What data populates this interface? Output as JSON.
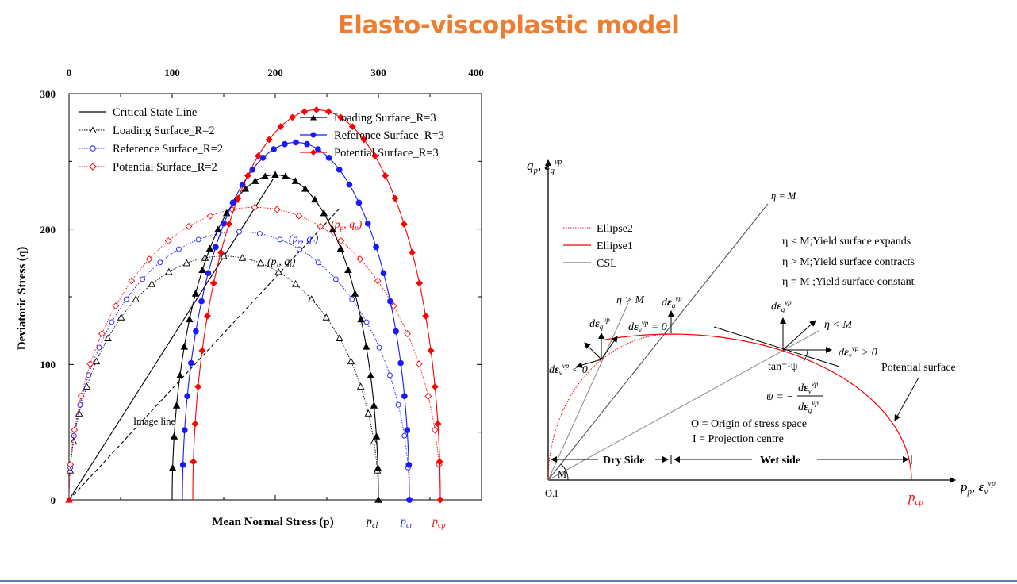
{
  "title": "Elasto-viscoplastic model",
  "chart_data": [
    {
      "type": "line",
      "xlabel": "Mean Normal Stress (p)",
      "ylabel": "Deviatoric Stress (q)",
      "xlim": [
        0,
        400
      ],
      "ylim": [
        0,
        300
      ],
      "x_ticks": [
        "0",
        "100",
        "200",
        "300",
        "400"
      ],
      "y_ticks": [
        "0",
        "100",
        "200",
        "300"
      ],
      "x_ticks_position": "top",
      "legend_left": [
        "Critical State Line",
        "Loading Surface_R=2",
        "Reference Surface_R=2",
        "Potential Surface_R=2"
      ],
      "legend_right": [
        "Loading Surface_R=3",
        "Reference Surface_R=3",
        "Potential Surface_R=3"
      ],
      "series": [
        {
          "name": "Critical State Line",
          "kind": "line",
          "color": "#000000",
          "x": [
            0,
            198
          ],
          "y": [
            0,
            237
          ]
        },
        {
          "name": "Image line",
          "kind": "dashed",
          "color": "#000000",
          "x": [
            0,
            262
          ],
          "y": [
            0,
            215
          ]
        },
        {
          "name": "Loading Surface_R=2",
          "kind": "ellipse",
          "color": "#000000",
          "marker": "triangle-open",
          "p0": 300,
          "R": 2,
          "M": 1.2
        },
        {
          "name": "Reference Surface_R=2",
          "kind": "ellipse",
          "color": "#1A1AFF",
          "marker": "circle-open",
          "p0": 330,
          "R": 2,
          "M": 1.2
        },
        {
          "name": "Potential Surface_R=2",
          "kind": "ellipse",
          "color": "#FF0000",
          "marker": "diamond-open",
          "p0": 360,
          "R": 2,
          "M": 1.2
        },
        {
          "name": "Loading Surface_R=3",
          "kind": "ellipse",
          "color": "#000000",
          "marker": "triangle-filled",
          "p0": 300,
          "R": 3,
          "M": 1.2
        },
        {
          "name": "Reference Surface_R=3",
          "kind": "ellipse",
          "color": "#1A1AFF",
          "marker": "circle-filled",
          "p0": 330,
          "R": 3,
          "M": 1.2
        },
        {
          "name": "Potential Surface_R=3",
          "kind": "ellipse",
          "color": "#FF0000",
          "marker": "diamond-filled",
          "p0": 360,
          "R": 3,
          "M": 1.2
        }
      ],
      "annotations": {
        "image_line": "Image line",
        "pl_q1": "(p_l, q_l)",
        "pr_qr": "(p_r, q_r)",
        "pp_qp": "(p_p, q_p)",
        "pcl": "p_cl",
        "pcr": "p_cr",
        "pcp": "p_cp"
      }
    }
  ],
  "diagram": {
    "y_axis_label": "q_p , ε_q^vp",
    "x_axis_label": "p_p , ε_v^vp",
    "legend": [
      "Ellipse2",
      "Ellipse1",
      "CSL"
    ],
    "rules": [
      "η < M;Yield surface expands",
      "η > M;Yield surface contracts",
      "η = M ;Yield surface constant"
    ],
    "csl_label": "η = M",
    "eta_gt_label": "η > M",
    "eta_lt_label": "η < M",
    "deq_label": "dε_q^vp",
    "dev0_label": "dε_v^vp = 0",
    "devneg_label": "dε_v^vp < 0",
    "devpos_label": "dε_v^vp > 0",
    "tan_label": "tan⁻¹ψ",
    "psi_label": "ψ = −",
    "psi_num": "dε_v^vp",
    "psi_den": "dε_q^vp",
    "origin_def": "O = Origin of stress space",
    "proj_def": "I = Projection centre",
    "dry_side": "Dry Side",
    "wet_side": "Wet side",
    "potential_surface": "Potential surface",
    "origin_label": "O.I",
    "m_label": "M",
    "pcp_label": "p_cp"
  }
}
